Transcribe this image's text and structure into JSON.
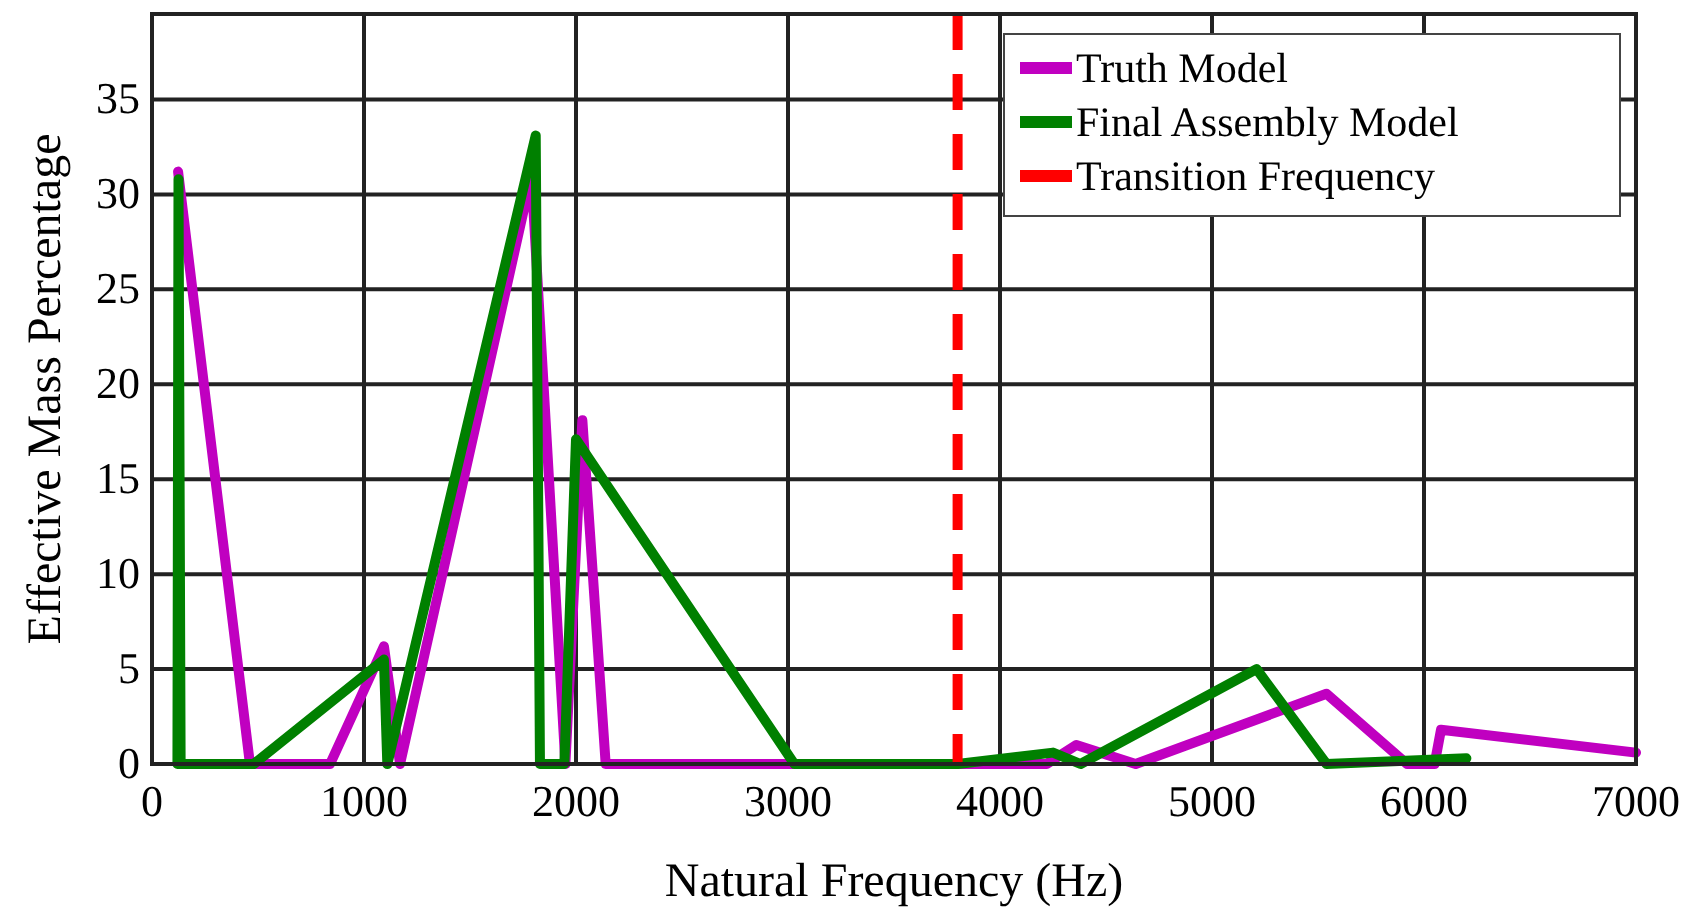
{
  "chart_data": {
    "type": "line",
    "xlabel": "Natural Frequency (Hz)",
    "ylabel": "Effective Mass Percentage",
    "xlim": [
      0,
      7000
    ],
    "xticks": [
      0,
      1000,
      2000,
      3000,
      4000,
      5000,
      6000,
      7000
    ],
    "ylim": [
      0,
      39.5
    ],
    "yticks": [
      0,
      5,
      10,
      15,
      20,
      25,
      30,
      35
    ],
    "grid": true,
    "legend": "top right",
    "line_style": "solid",
    "marker": "none",
    "series": [
      {
        "name": "Truth Model",
        "color": "#c000c0",
        "x": [
          123,
          462,
          840,
          1094,
          1170,
          1790,
          1950,
          2030,
          2140,
          4220,
          4360,
          4640,
          5540,
          5920,
          6050,
          6080,
          7000
        ],
        "values": [
          31.2,
          0,
          0,
          6.2,
          0,
          31,
          0,
          18.1,
          0,
          0,
          1,
          0,
          3.7,
          0,
          0,
          1.8,
          0.6
        ]
      },
      {
        "name": "Final Assembly Model",
        "color": "#008000",
        "x": [
          120,
          125,
          135,
          480,
          1094,
          1110,
          1810,
          1830,
          1945,
          2000,
          3030,
          3800,
          4250,
          4380,
          5210,
          5540,
          6200
        ],
        "values": [
          0,
          30.8,
          0,
          0,
          5.5,
          0,
          33.1,
          0,
          0,
          17.1,
          0,
          0,
          0.6,
          0,
          5,
          0,
          0.3
        ]
      }
    ],
    "ref_lines": [
      {
        "axis": "x",
        "value": 3800,
        "label": "Transition Frequency",
        "color": "#ff0000",
        "line_style": "dashed"
      }
    ]
  }
}
